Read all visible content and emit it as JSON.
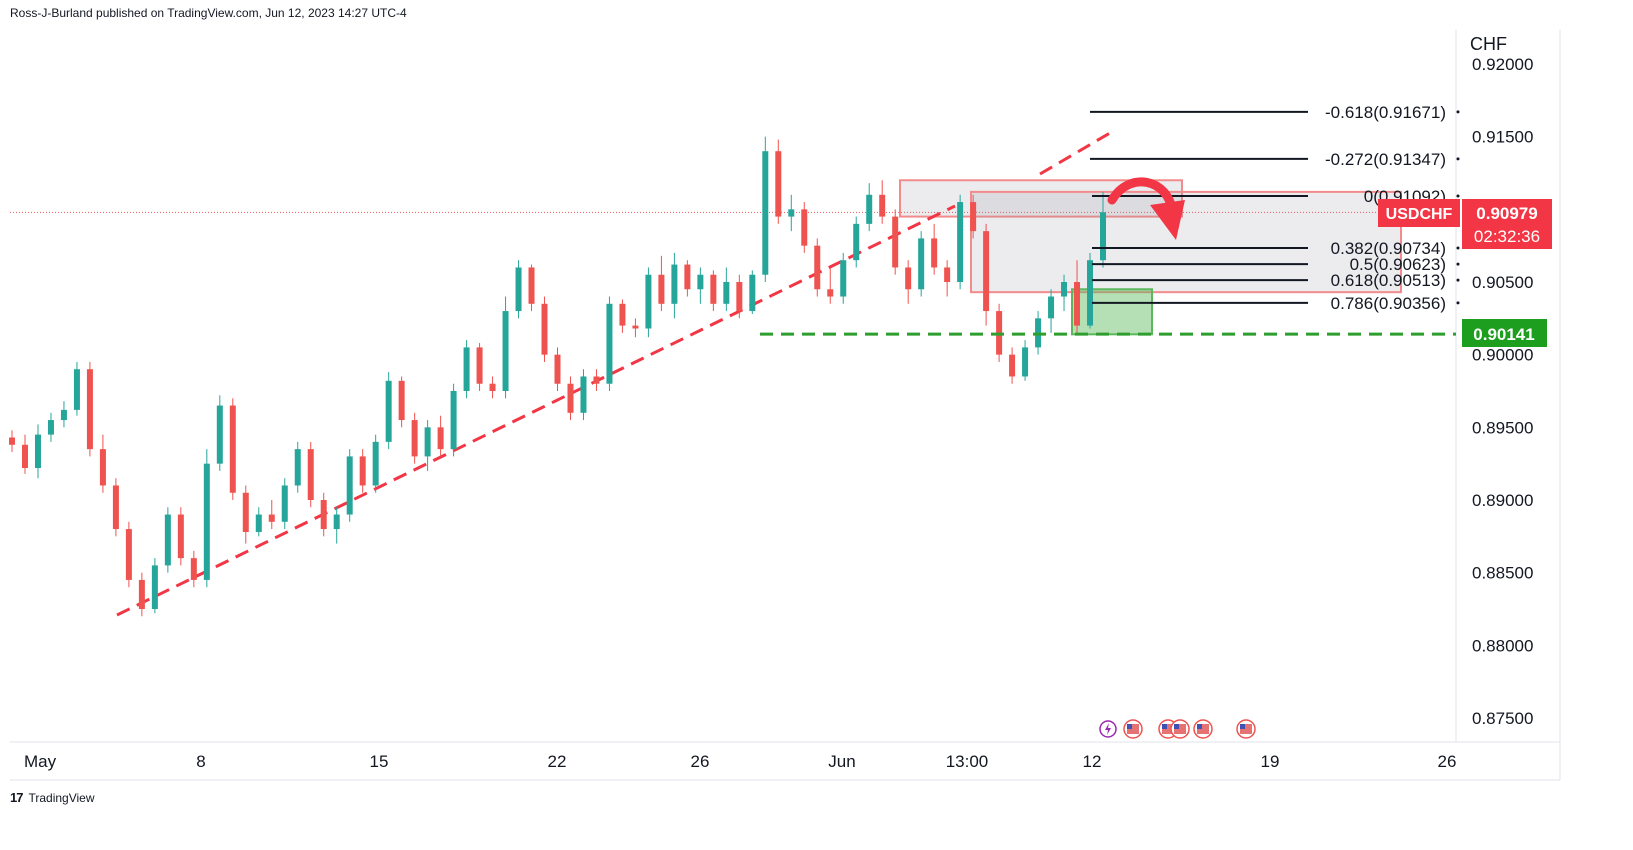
{
  "header": {
    "attribution": "Ross-J-Burland published on TradingView.com, Jun 12, 2023 14:27 UTC-4"
  },
  "footer": {
    "brand": "TradingView"
  },
  "colors": {
    "up": "#26a69a",
    "down": "#ef5350",
    "fib": "#131722",
    "support": "#2e9e2e",
    "box_red": "#f28c8c",
    "box_green": "#5cb85c",
    "price_label": "#f23645",
    "support_label": "#1e9e1e"
  },
  "chart_data": {
    "type": "candlestick",
    "symbol": "USDCHF",
    "currency": "CHF",
    "y_ticks": [
      "0.92000",
      "0.91500",
      "0.90500",
      "0.90000",
      "0.89500",
      "0.89000",
      "0.88500",
      "0.88000",
      "0.87500"
    ],
    "y_tick_values": [
      0.92,
      0.915,
      0.905,
      0.9,
      0.895,
      0.89,
      0.885,
      0.88,
      0.875
    ],
    "x_ticks": [
      "May",
      "8",
      "15",
      "22",
      "26",
      "Jun",
      "13:00",
      "12",
      "19",
      "26"
    ],
    "last_price": "0.90979",
    "countdown": "02:32:36",
    "support_level": "0.90141",
    "support_value": 0.90141,
    "fib_levels": [
      {
        "label": "-0.618(0.91671)",
        "value": 0.91671
      },
      {
        "label": "-0.272(0.91347)",
        "value": 0.91347
      },
      {
        "label": "0(0.91092)",
        "value": 0.91092
      },
      {
        "label": "0.382(0.90734)",
        "value": 0.90734
      },
      {
        "label": "0.5(0.90623)",
        "value": 0.90623
      },
      {
        "label": "0.618(0.90513)",
        "value": 0.90513
      },
      {
        "label": "0.786(0.90356)",
        "value": 0.90356
      }
    ],
    "event_icons": [
      "lightning-event-icon",
      "us-flag-icon",
      "us-flag-icon",
      "us-flag-icon",
      "us-flag-icon",
      "us-flag-icon"
    ],
    "candles": [
      [
        0.8943,
        0.8948,
        0.8933,
        0.8938
      ],
      [
        0.8938,
        0.8945,
        0.8918,
        0.8922
      ],
      [
        0.8922,
        0.8952,
        0.8915,
        0.8945
      ],
      [
        0.8945,
        0.896,
        0.894,
        0.8955
      ],
      [
        0.8955,
        0.8968,
        0.895,
        0.8962
      ],
      [
        0.8962,
        0.8995,
        0.8958,
        0.899
      ],
      [
        0.899,
        0.8995,
        0.893,
        0.8935
      ],
      [
        0.8935,
        0.8945,
        0.8905,
        0.891
      ],
      [
        0.891,
        0.8915,
        0.8875,
        0.888
      ],
      [
        0.888,
        0.8885,
        0.884,
        0.8845
      ],
      [
        0.8845,
        0.885,
        0.882,
        0.8825
      ],
      [
        0.8825,
        0.886,
        0.8822,
        0.8855
      ],
      [
        0.8855,
        0.8895,
        0.885,
        0.889
      ],
      [
        0.889,
        0.8895,
        0.8855,
        0.886
      ],
      [
        0.886,
        0.8865,
        0.884,
        0.8845
      ],
      [
        0.8845,
        0.8935,
        0.884,
        0.8925
      ],
      [
        0.8925,
        0.8972,
        0.892,
        0.8965
      ],
      [
        0.8965,
        0.897,
        0.89,
        0.8905
      ],
      [
        0.8905,
        0.891,
        0.887,
        0.8878
      ],
      [
        0.8878,
        0.8895,
        0.8875,
        0.889
      ],
      [
        0.889,
        0.89,
        0.888,
        0.8885
      ],
      [
        0.8885,
        0.8915,
        0.888,
        0.891
      ],
      [
        0.891,
        0.894,
        0.8905,
        0.8935
      ],
      [
        0.8935,
        0.894,
        0.8895,
        0.89
      ],
      [
        0.89,
        0.8905,
        0.8875,
        0.888
      ],
      [
        0.888,
        0.8895,
        0.887,
        0.889
      ],
      [
        0.889,
        0.8935,
        0.8885,
        0.893
      ],
      [
        0.893,
        0.8935,
        0.8905,
        0.891
      ],
      [
        0.891,
        0.8945,
        0.8905,
        0.894
      ],
      [
        0.894,
        0.8988,
        0.8935,
        0.8982
      ],
      [
        0.8982,
        0.8985,
        0.895,
        0.8955
      ],
      [
        0.8955,
        0.896,
        0.8925,
        0.893
      ],
      [
        0.893,
        0.8955,
        0.892,
        0.895
      ],
      [
        0.895,
        0.8958,
        0.893,
        0.8935
      ],
      [
        0.8935,
        0.898,
        0.893,
        0.8975
      ],
      [
        0.8975,
        0.901,
        0.897,
        0.9005
      ],
      [
        0.9005,
        0.9008,
        0.8975,
        0.898
      ],
      [
        0.898,
        0.8985,
        0.897,
        0.8975
      ],
      [
        0.8975,
        0.904,
        0.897,
        0.903
      ],
      [
        0.903,
        0.9065,
        0.9025,
        0.906
      ],
      [
        0.906,
        0.9062,
        0.903,
        0.9035
      ],
      [
        0.9035,
        0.904,
        0.8995,
        0.9
      ],
      [
        0.9,
        0.9005,
        0.8975,
        0.898
      ],
      [
        0.898,
        0.8985,
        0.8955,
        0.896
      ],
      [
        0.896,
        0.899,
        0.8955,
        0.8985
      ],
      [
        0.8985,
        0.899,
        0.8975,
        0.898
      ],
      [
        0.898,
        0.904,
        0.8975,
        0.9035
      ],
      [
        0.9035,
        0.9038,
        0.9015,
        0.902
      ],
      [
        0.902,
        0.9025,
        0.9012,
        0.9018
      ],
      [
        0.9018,
        0.906,
        0.9012,
        0.9055
      ],
      [
        0.9055,
        0.9068,
        0.903,
        0.9035
      ],
      [
        0.9035,
        0.907,
        0.9025,
        0.9062
      ],
      [
        0.9062,
        0.9065,
        0.904,
        0.9045
      ],
      [
        0.9045,
        0.906,
        0.9035,
        0.9055
      ],
      [
        0.9055,
        0.9058,
        0.903,
        0.9035
      ],
      [
        0.9035,
        0.906,
        0.903,
        0.905
      ],
      [
        0.905,
        0.9055,
        0.9025,
        0.903
      ],
      [
        0.903,
        0.9058,
        0.9028,
        0.9055
      ],
      [
        0.9055,
        0.915,
        0.905,
        0.914
      ],
      [
        0.914,
        0.9148,
        0.909,
        0.9095
      ],
      [
        0.9095,
        0.911,
        0.9085,
        0.91
      ],
      [
        0.91,
        0.9105,
        0.907,
        0.9075
      ],
      [
        0.9075,
        0.908,
        0.904,
        0.9045
      ],
      [
        0.9045,
        0.906,
        0.9035,
        0.904
      ],
      [
        0.904,
        0.907,
        0.9035,
        0.9065
      ],
      [
        0.9065,
        0.9095,
        0.906,
        0.909
      ],
      [
        0.909,
        0.9118,
        0.9085,
        0.911
      ],
      [
        0.911,
        0.912,
        0.909,
        0.9095
      ],
      [
        0.9095,
        0.91,
        0.9055,
        0.906
      ],
      [
        0.906,
        0.9065,
        0.9035,
        0.9045
      ],
      [
        0.9045,
        0.9085,
        0.904,
        0.908
      ],
      [
        0.908,
        0.909,
        0.9055,
        0.906
      ],
      [
        0.906,
        0.9065,
        0.904,
        0.905
      ],
      [
        0.905,
        0.911,
        0.9045,
        0.9105
      ],
      [
        0.9105,
        0.911,
        0.908,
        0.9085
      ],
      [
        0.9085,
        0.909,
        0.902,
        0.903
      ],
      [
        0.903,
        0.9035,
        0.8995,
        0.9
      ],
      [
        0.9,
        0.9005,
        0.898,
        0.8985
      ],
      [
        0.8985,
        0.901,
        0.8982,
        0.9005
      ],
      [
        0.9005,
        0.903,
        0.9,
        0.9025
      ],
      [
        0.9025,
        0.9045,
        0.9015,
        0.904
      ],
      [
        0.904,
        0.9055,
        0.903,
        0.905
      ],
      [
        0.905,
        0.9065,
        0.9015,
        0.902
      ],
      [
        0.902,
        0.907,
        0.9018,
        0.9065
      ],
      [
        0.9065,
        0.9112,
        0.906,
        0.9098
      ]
    ]
  }
}
